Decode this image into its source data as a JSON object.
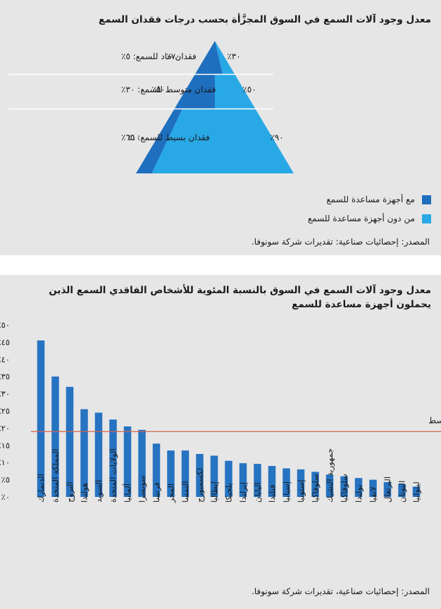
{
  "colors": {
    "panel_bg": "#e6e6e7",
    "with_aids": "#1f6fbf",
    "without_aids": "#29a8e6",
    "bar": "#2673c2",
    "average_line": "#d06446",
    "separator": "#ffffff"
  },
  "panel1": {
    "title": "معدل وجود آلات السمع في السوق المجزَّأة بحسب درجات فقدان السمع",
    "source": "المصدر: إحصائيات صناعية: تقديرات شركة سونوفا.",
    "legend": [
      {
        "label": "مع أجهزة مساعدة للسمع",
        "color": "#1f6fbf"
      },
      {
        "label": "من دون أجهزة مساعدة للسمع",
        "color": "#29a8e6"
      }
    ],
    "levels": [
      {
        "name": "فقدان حاد للسمع: ٥٪",
        "with_pct": 70,
        "without_pct": 30,
        "with_label": "٧٠٪",
        "without_label": "٣٠٪"
      },
      {
        "name": "فقدان متوسط للسمع: ٣٠٪",
        "with_pct": 50,
        "without_pct": 50,
        "with_label": "٥٠٪",
        "without_label": "٥٠٪"
      },
      {
        "name": "فقدان بسيط للسمع: ٦٥٪",
        "with_pct": 10,
        "without_pct": 90,
        "with_label": "١٠٪",
        "without_label": "٩٠٪"
      }
    ]
  },
  "chart_data": {
    "type": "bar",
    "title": "معدل وجود آلات السمع في السوق بالنسبة المئوية للأشخاص الفاقدي السمع الذين يحملون أجهزة مساعدة للسمع",
    "source": "المصدر: إحصائيات صناعية، تقديرات شركة سونوفا.",
    "categories": [
      "الدنمارك",
      "المملكة المتحدة",
      "النروج",
      "هولندا",
      "السويد",
      "الولايات المتحدة",
      "ألمانيا",
      "سويسرا",
      "فرنسا",
      "المجر",
      "النمسا",
      "لكسمبورج",
      "إيطاليا",
      "بلجيكا",
      "إيرلندا",
      "اليابان",
      "فنلندا",
      "إسبانيا",
      "إستونيا",
      "سلوفاكيا",
      "جمهورية التشيك",
      "سلوفاكيا",
      "بولندا",
      "لاتفيا",
      "البرتغال",
      "اليونان",
      "ليتوانيا"
    ],
    "values": [
      45.5,
      35,
      32,
      25.5,
      24.5,
      22.5,
      20.5,
      19.5,
      15.5,
      13.5,
      13.5,
      12.5,
      12,
      10.5,
      9.8,
      9.6,
      9,
      8.3,
      8,
      7.3,
      6.5,
      6,
      5.5,
      5,
      4.3,
      3.8,
      3
    ],
    "yticks": [
      "٠٪",
      "٥٪",
      "١٠٪",
      "١٥٪",
      "٢٠٪",
      "٢٥٪",
      "٣٠٪",
      "٣٥٪",
      "٤٠٪",
      "٤٥٪",
      "٥٠٪"
    ],
    "ylim": [
      0,
      50
    ],
    "average": 19,
    "average_label": "المتوسط"
  }
}
